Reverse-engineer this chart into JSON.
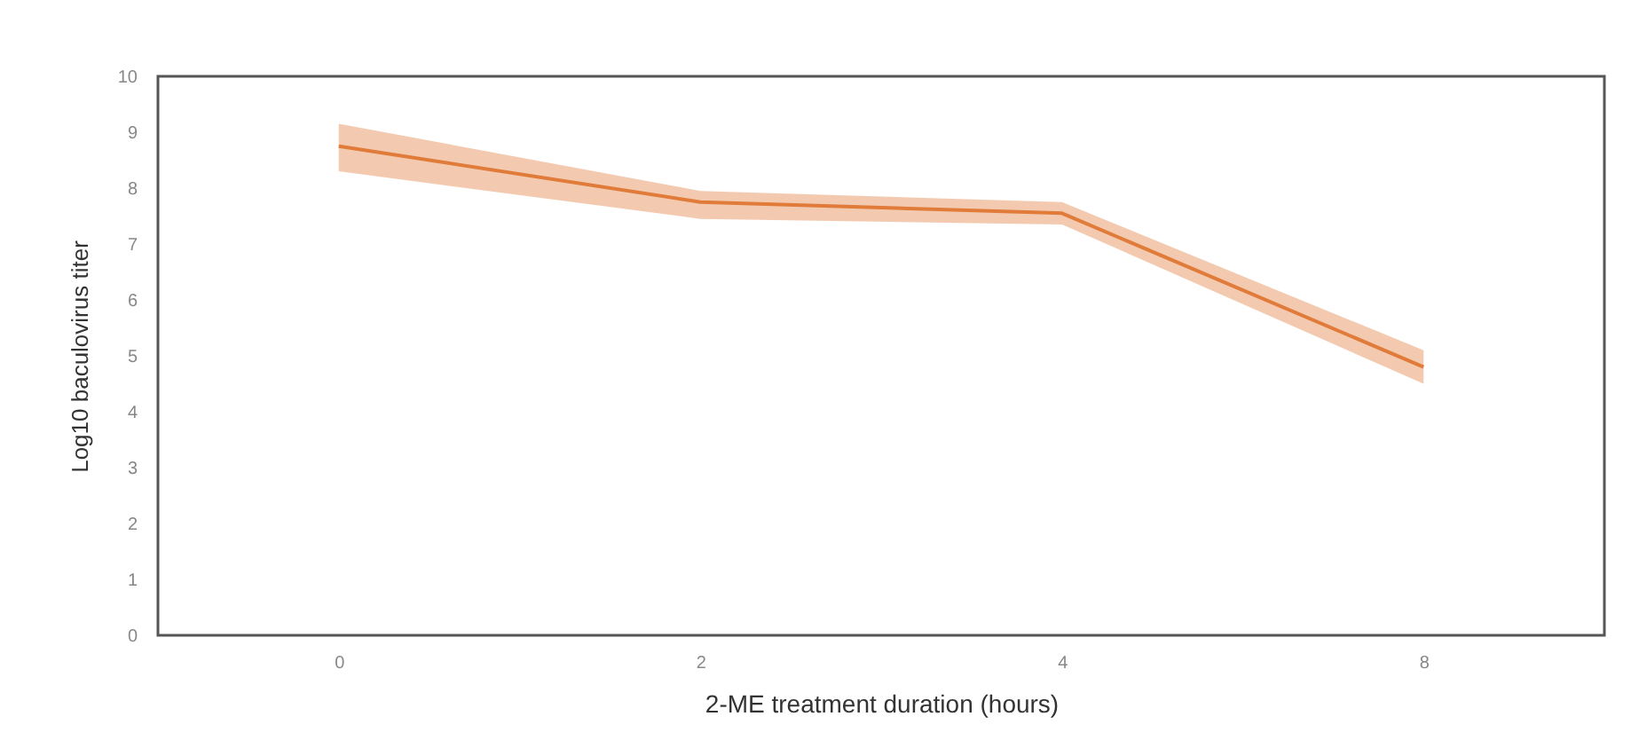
{
  "chart_data": {
    "type": "line",
    "xlabel": "2-ME treatment duration (hours)",
    "ylabel": "Log10 baculovirus titer",
    "categories": [
      "0",
      "2",
      "4",
      "8"
    ],
    "series": [
      {
        "color": "#e07b3a",
        "values": [
          8.75,
          7.75,
          7.55,
          4.8
        ],
        "lower": [
          8.3,
          7.45,
          7.35,
          4.5
        ],
        "upper": [
          9.15,
          7.95,
          7.75,
          5.1
        ]
      }
    ],
    "ylim": [
      0,
      10
    ],
    "yticks": [
      0,
      1,
      2,
      3,
      4,
      5,
      6,
      7,
      8,
      9,
      10
    ],
    "grid": false,
    "marker": "none",
    "line_style": "solid"
  }
}
